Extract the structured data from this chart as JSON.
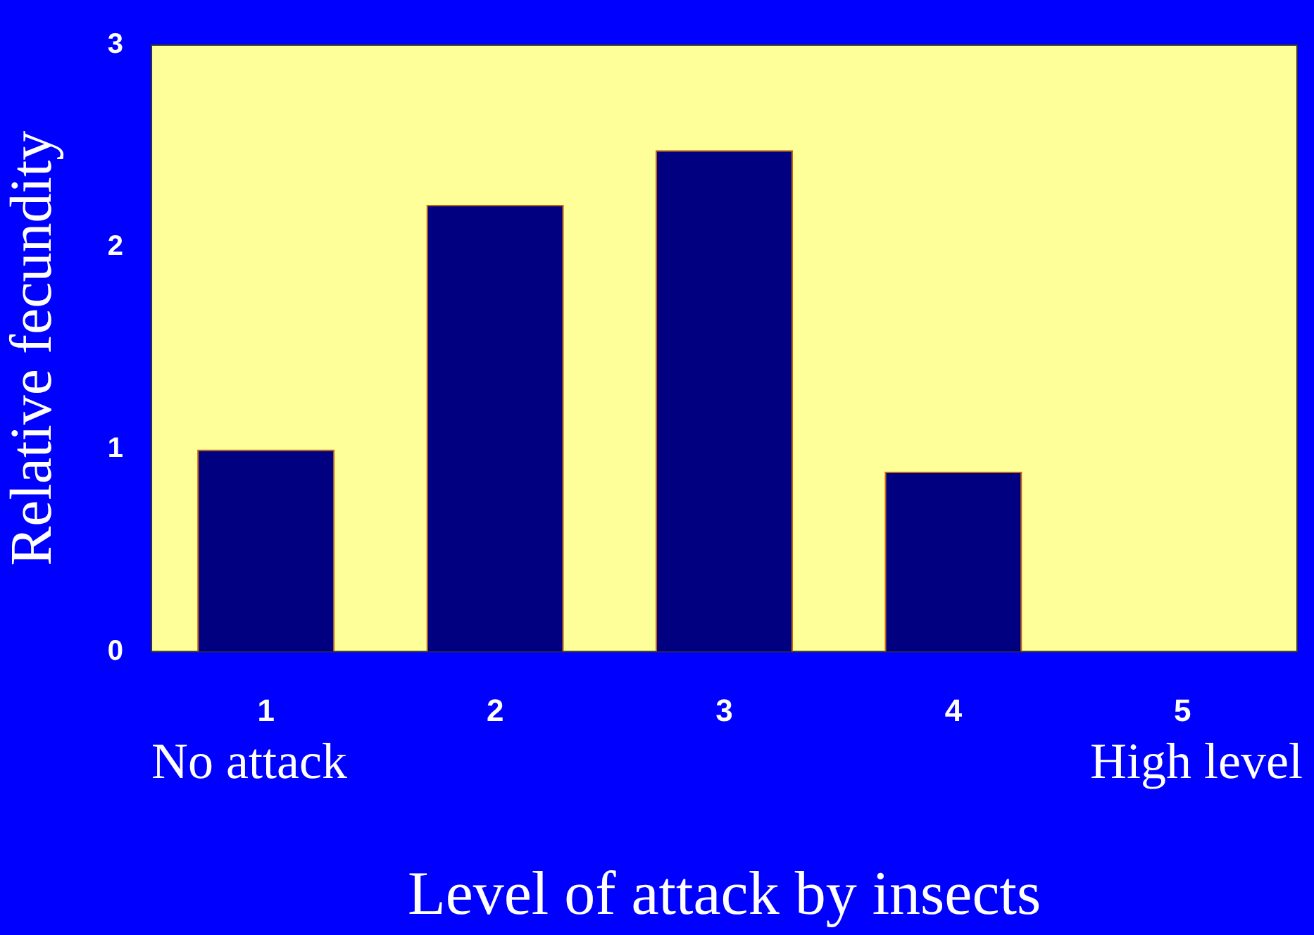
{
  "chart_data": {
    "type": "bar",
    "xlabel": "Level of attack by insects",
    "ylabel": "Relative fecundity",
    "categories": [
      "1",
      "2",
      "3",
      "4",
      "5"
    ],
    "values": [
      1.0,
      2.21,
      2.48,
      0.89,
      0
    ],
    "color": "#000080",
    "ylim": [
      0,
      3
    ],
    "yticks": [
      0,
      1,
      2,
      3
    ],
    "grid": false,
    "legend": false,
    "annotations": [
      "No attack",
      "High level"
    ]
  }
}
